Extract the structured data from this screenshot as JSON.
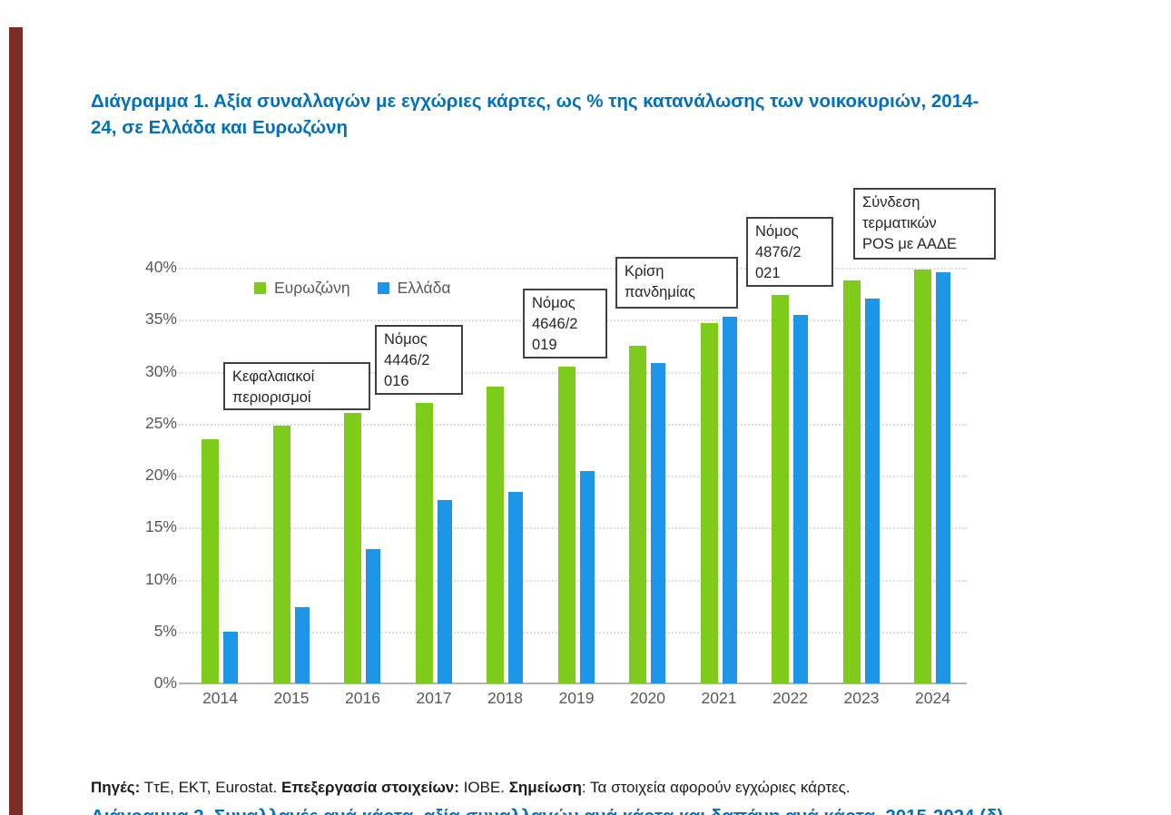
{
  "page": {
    "accent_bar_color": "#7B2D26",
    "title_color": "#0070C0",
    "figure1_title": "Διάγραμμα 1. Αξία συναλλαγών με εγχώριες κάρτες, ως % της κατανάλωσης των νοικοκυριών, 2014-24, σε Ελλάδα και Ευρωζώνη",
    "title_lines": [
      "Διάγραμμα 1. Αξία συναλλαγών με εγχώριες κάρτες, ως % της κατανάλωσης των νοικοκυριών, 2014-",
      "24, σε Ελλάδα και Ευρωζώνη"
    ],
    "footer_segments": [
      {
        "text": "Πηγές:",
        "bold": true
      },
      {
        "text": " ΤτΕ, ΕΚΤ, Eurostat. ",
        "bold": false
      },
      {
        "text": "Επεξεργασία στοιχείων:",
        "bold": true
      },
      {
        "text": " ΙΟΒΕ. ",
        "bold": false
      },
      {
        "text": "Σημείωση",
        "bold": true
      },
      {
        "text": ": Τα στοιχεία αφορούν εγχώριες κάρτες.",
        "bold": false
      }
    ],
    "next_heading_clipped": "Διάγραμμα 2. Συναλλαγές ανά κάρτα, αξία συναλλαγών ανά κάρτα και δαπάνη ανά κάρτα, 2015-2024 (δ)"
  },
  "chart_data": {
    "type": "bar",
    "title": "Διάγραμμα 1. Αξία συναλλαγών με εγχώριες κάρτες, ως % της κατανάλωσης των νοικοκυριών, 2014-24, σε Ελλάδα και Ευρωζώνη",
    "categories": [
      "2014",
      "2015",
      "2016",
      "2017",
      "2018",
      "2019",
      "2020",
      "2021",
      "2022",
      "2023",
      "2024"
    ],
    "series": [
      {
        "name": "Ευρωζώνη",
        "color": "#7FCB1B",
        "values": [
          23.5,
          24.8,
          26.0,
          27.0,
          28.6,
          30.5,
          32.5,
          34.7,
          37.4,
          38.8,
          39.8
        ]
      },
      {
        "name": "Ελλάδα",
        "color": "#1E96E8",
        "values": [
          5.0,
          7.3,
          12.9,
          17.6,
          18.4,
          20.4,
          30.8,
          35.3,
          35.5,
          37.0,
          39.6
        ]
      }
    ],
    "xlabel": "",
    "ylabel": "",
    "ylim": [
      0,
      40
    ],
    "y_tick_labels": [
      "0%",
      "5%",
      "10%",
      "15%",
      "20%",
      "25%",
      "30%",
      "35%",
      "40%"
    ],
    "grid": "horizontal dotted",
    "legend_position": "inside top-left",
    "axis_text_color": "#595959",
    "annotations": [
      {
        "text": "Κεφαλαιακοί περιορισμοί",
        "lines": [
          "Κεφαλαιακοί",
          "περιορισμοί"
        ]
      },
      {
        "text": "Νόμος 4446/2016",
        "lines": [
          "Νόμος",
          "4446/2",
          "016"
        ]
      },
      {
        "text": "Νόμος 4646/2019",
        "lines": [
          "Νόμος",
          "4646/2",
          "019"
        ]
      },
      {
        "text": "Κρίση πανδημίας",
        "lines": [
          "Κρίση",
          "πανδημίας"
        ]
      },
      {
        "text": "Νόμος 4876/2021",
        "lines": [
          "Νόμος",
          "4876/2",
          "021"
        ]
      },
      {
        "text": "Σύνδεση τερματικών POS με ΑΑΔΕ",
        "lines": [
          "Σύνδεση",
          "τερματικών",
          "POS με ΑΑΔΕ"
        ]
      }
    ]
  }
}
